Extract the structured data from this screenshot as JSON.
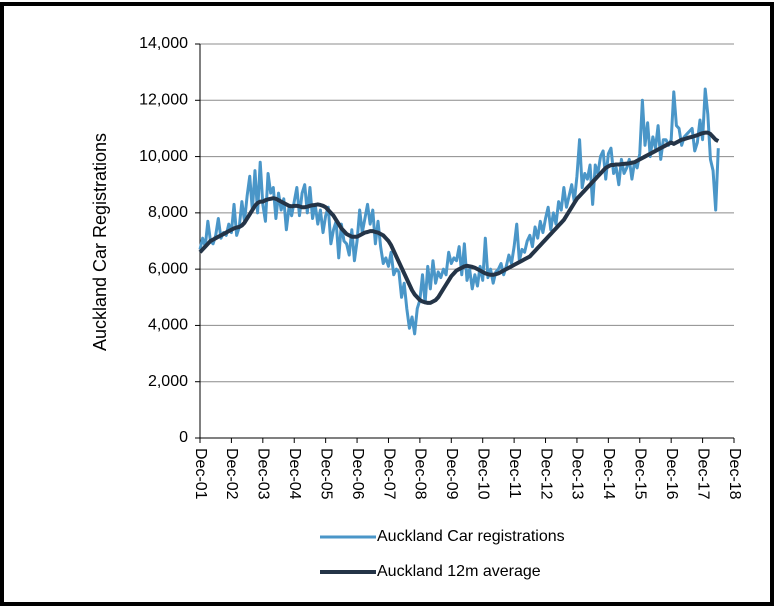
{
  "chart_data": {
    "type": "line",
    "ylabel": "Auckland Car Registrations",
    "categories": [
      "Dec-01",
      null,
      null,
      null,
      null,
      null,
      null,
      null,
      null,
      null,
      null,
      null,
      "Dec-02",
      null,
      null,
      null,
      null,
      null,
      null,
      null,
      null,
      null,
      null,
      null,
      "Dec-03",
      null,
      null,
      null,
      null,
      null,
      null,
      null,
      null,
      null,
      null,
      null,
      "Dec-04",
      null,
      null,
      null,
      null,
      null,
      null,
      null,
      null,
      null,
      null,
      null,
      "Dec-05",
      null,
      null,
      null,
      null,
      null,
      null,
      null,
      null,
      null,
      null,
      null,
      "Dec-06",
      null,
      null,
      null,
      null,
      null,
      null,
      null,
      null,
      null,
      null,
      null,
      "Dec-07",
      null,
      null,
      null,
      null,
      null,
      null,
      null,
      null,
      null,
      null,
      null,
      "Dec-08",
      null,
      null,
      null,
      null,
      null,
      null,
      null,
      null,
      null,
      null,
      null,
      "Dec-09",
      null,
      null,
      null,
      null,
      null,
      null,
      null,
      null,
      null,
      null,
      null,
      "Dec-10",
      null,
      null,
      null,
      null,
      null,
      null,
      null,
      null,
      null,
      null,
      null,
      "Dec-11",
      null,
      null,
      null,
      null,
      null,
      null,
      null,
      null,
      null,
      null,
      null,
      "Dec-12",
      null,
      null,
      null,
      null,
      null,
      null,
      null,
      null,
      null,
      null,
      null,
      "Dec-13",
      null,
      null,
      null,
      null,
      null,
      null,
      null,
      null,
      null,
      null,
      null,
      "Dec-14",
      null,
      null,
      null,
      null,
      null,
      null,
      null,
      null,
      null,
      null,
      null,
      "Dec-15",
      null,
      null,
      null,
      null,
      null,
      null,
      null,
      null,
      null,
      null,
      null,
      "Dec-16",
      null,
      null,
      null,
      null,
      null,
      null,
      null,
      null,
      null,
      null,
      null,
      "Dec-17",
      null,
      null,
      null,
      null,
      null,
      null,
      null,
      null,
      null,
      null,
      null,
      "Dec-18"
    ],
    "series": [
      {
        "name": "Auckland Car registrations",
        "color": "#4a96c8",
        "values": [
          6700,
          7100,
          6800,
          7700,
          7000,
          6900,
          7200,
          7800,
          7100,
          7300,
          7200,
          7600,
          7300,
          8300,
          7200,
          7500,
          8400,
          7700,
          8600,
          9300,
          8100,
          9500,
          8000,
          9800,
          8300,
          7700,
          9400,
          8700,
          8900,
          7800,
          8700,
          8100,
          8500,
          7400,
          8200,
          7900,
          8400,
          8900,
          7900,
          8700,
          9000,
          8000,
          8900,
          7800,
          8300,
          7600,
          8100,
          7300,
          7900,
          8200,
          6900,
          7400,
          7700,
          6400,
          7600,
          7000,
          6900,
          6500,
          7400,
          6300,
          7000,
          8100,
          7300,
          7800,
          8300,
          7600,
          8100,
          6900,
          7700,
          6800,
          6200,
          6400,
          6100,
          6600,
          5800,
          6000,
          5900,
          5000,
          5500,
          4600,
          3900,
          4300,
          3700,
          4600,
          4900,
          5800,
          4800,
          6100,
          5300,
          6300,
          5500,
          5900,
          5700,
          6000,
          5800,
          6600,
          6200,
          6400,
          6300,
          6800,
          5800,
          6900,
          5600,
          6000,
          5300,
          5800,
          5400,
          6100,
          5600,
          7100,
          5700,
          6000,
          5500,
          5900,
          6000,
          6200,
          5800,
          6100,
          6500,
          6200,
          6800,
          7600,
          6300,
          6700,
          6600,
          7000,
          7200,
          6800,
          7500,
          7100,
          7700,
          7300,
          7800,
          8200,
          7400,
          8000,
          7600,
          8400,
          8100,
          8900,
          8200,
          8600,
          9000,
          8400,
          9300,
          10600,
          8900,
          9400,
          9200,
          9700,
          8300,
          9700,
          9400,
          10000,
          10200,
          9200,
          10100,
          10300,
          9400,
          9600,
          9000,
          9900,
          9400,
          9600,
          9900,
          9200,
          9800,
          9600,
          10100,
          12000,
          10400,
          11200,
          10000,
          10700,
          10300,
          11100,
          9900,
          10600,
          10600,
          10400,
          10600,
          12300,
          11100,
          11000,
          10400,
          10700,
          10800,
          10900,
          11000,
          10200,
          10500,
          11300,
          10600,
          12400,
          11500,
          9900,
          9500,
          8100,
          10300,
          null,
          null,
          null,
          null,
          null,
          null
        ]
      },
      {
        "name": "Auckland 12m average",
        "color": "#243447",
        "values": [
          6600,
          6700,
          6800,
          6900,
          7000,
          7050,
          7100,
          7150,
          7200,
          7250,
          7300,
          7350,
          7400,
          7450,
          7480,
          7500,
          7550,
          7650,
          7800,
          7950,
          8100,
          8250,
          8350,
          8400,
          8400,
          8450,
          8480,
          8500,
          8520,
          8500,
          8450,
          8400,
          8350,
          8300,
          8250,
          8230,
          8250,
          8250,
          8230,
          8200,
          8200,
          8220,
          8250,
          8270,
          8280,
          8300,
          8280,
          8250,
          8200,
          8100,
          8000,
          7900,
          7750,
          7600,
          7450,
          7350,
          7250,
          7200,
          7150,
          7150,
          7150,
          7200,
          7250,
          7300,
          7320,
          7350,
          7350,
          7320,
          7300,
          7250,
          7200,
          7100,
          7000,
          6850,
          6650,
          6450,
          6250,
          6050,
          5850,
          5650,
          5450,
          5250,
          5100,
          5000,
          4900,
          4850,
          4820,
          4800,
          4800,
          4850,
          4900,
          5000,
          5150,
          5300,
          5450,
          5600,
          5750,
          5850,
          5950,
          6000,
          6050,
          6100,
          6120,
          6100,
          6080,
          6050,
          6000,
          5950,
          5900,
          5850,
          5820,
          5800,
          5800,
          5820,
          5850,
          5900,
          5950,
          6000,
          6050,
          6100,
          6150,
          6200,
          6250,
          6300,
          6350,
          6400,
          6450,
          6550,
          6650,
          6750,
          6850,
          6950,
          7050,
          7150,
          7250,
          7350,
          7450,
          7550,
          7650,
          7750,
          7900,
          8050,
          8200,
          8350,
          8500,
          8600,
          8700,
          8800,
          8900,
          9000,
          9100,
          9200,
          9300,
          9400,
          9500,
          9600,
          9650,
          9700,
          9700,
          9720,
          9720,
          9730,
          9740,
          9750,
          9760,
          9780,
          9800,
          9850,
          9900,
          9950,
          10000,
          10050,
          10100,
          10150,
          10200,
          10250,
          10300,
          10350,
          10400,
          10450,
          10500,
          10450,
          10500,
          10550,
          10600,
          10620,
          10650,
          10680,
          10700,
          10730,
          10760,
          10800,
          10830,
          10850,
          10850,
          10800,
          10700,
          10600,
          10550,
          null,
          null,
          null,
          null,
          null,
          null
        ]
      }
    ],
    "ylim": [
      0,
      14000
    ],
    "yticks": [
      0,
      {
        "value": 2000,
        "label": "2,000"
      },
      {
        "value": 4000,
        "label": "4,000"
      },
      {
        "value": 6000,
        "label": "6,000"
      },
      {
        "value": 8000,
        "label": "8,000"
      },
      {
        "value": 10000,
        "label": "10,000"
      },
      {
        "value": 12000,
        "label": "12,000"
      },
      {
        "value": 14000,
        "label": "14,000"
      }
    ],
    "grid": true,
    "legend": "bottom"
  }
}
